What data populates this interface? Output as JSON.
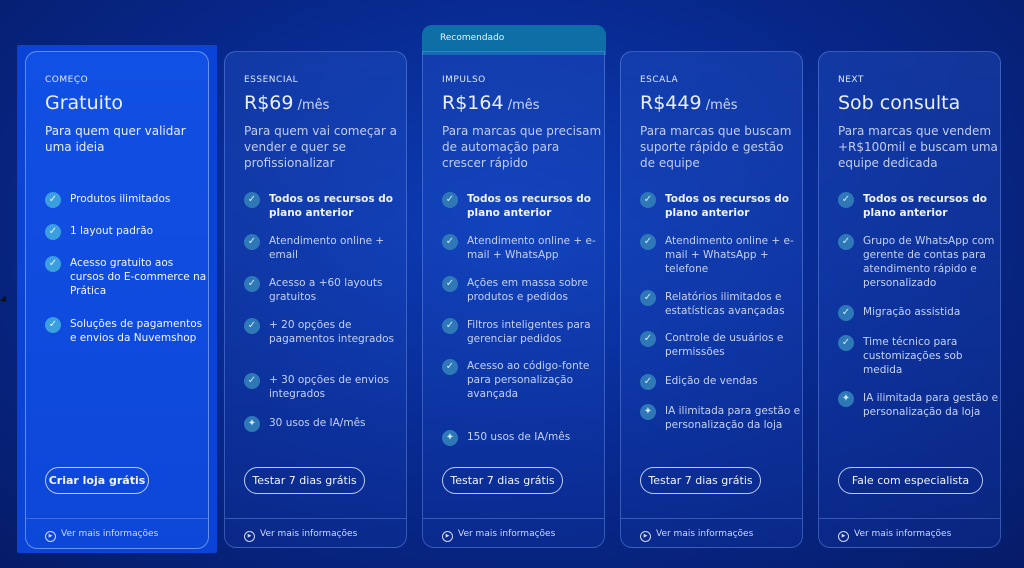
{
  "recommended_label": "Recomendado",
  "plans": [
    {
      "tier": "COMEÇO",
      "price": "Gratuito",
      "period": "",
      "description": "Para quem quer validar uma ideia",
      "features": [
        {
          "text": "Produtos ilimitados",
          "icon": "check-icon"
        },
        {
          "text": "1 layout padrão",
          "icon": "check-icon"
        },
        {
          "text": "Acesso gratuito aos cursos do E-commerce na Prática",
          "icon": "check-icon"
        },
        {
          "text": "Soluções de pagamentos e envios da Nuvemshop",
          "icon": "check-icon"
        }
      ],
      "cta": "Criar loja grátis",
      "more": "Ver mais informações"
    },
    {
      "tier": "ESSENCIAL",
      "price": "R$69",
      "period": " /mês",
      "description": "Para quem vai começar a vender e quer se profissionalizar",
      "features": [
        {
          "text": "Todos os recursos do plano anterior",
          "icon": "check-icon"
        },
        {
          "text": "Atendimento online + email",
          "icon": "check-icon"
        },
        {
          "text": "Acesso a +60 layouts gratuitos",
          "icon": "check-icon"
        },
        {
          "text": "+ 20 opções de pagamentos integrados",
          "icon": "check-icon"
        },
        {
          "text": "+ 30 opções de envios integrados",
          "icon": "check-icon"
        },
        {
          "text": "30 usos de IA/mês",
          "icon": "sparkle-icon"
        }
      ],
      "cta": "Testar 7 dias grátis",
      "more": "Ver mais informações"
    },
    {
      "tier": "IMPULSO",
      "price": "R$164",
      "period": " /mês",
      "description": "Para marcas que precisam de automação para crescer rápido",
      "features": [
        {
          "text": "Todos os recursos do plano anterior",
          "icon": "check-icon"
        },
        {
          "text": "Atendimento online + e-mail + WhatsApp",
          "icon": "check-icon"
        },
        {
          "text": "Ações em massa sobre produtos e pedidos",
          "icon": "check-icon"
        },
        {
          "text": "Filtros inteligentes para gerenciar pedidos",
          "icon": "check-icon"
        },
        {
          "text": "Acesso ao código-fonte para personalização avançada",
          "icon": "check-icon"
        },
        {
          "text": "150 usos de IA/mês",
          "icon": "sparkle-icon"
        }
      ],
      "cta": "Testar 7 dias grátis",
      "more": "Ver mais informações"
    },
    {
      "tier": "ESCALA",
      "price": "R$449",
      "period": " /mês",
      "description": "Para marcas que buscam suporte rápido e gestão de equipe",
      "features": [
        {
          "text": "Todos os recursos do plano anterior",
          "icon": "check-icon"
        },
        {
          "text": "Atendimento online + e-mail + WhatsApp + telefone",
          "icon": "check-icon"
        },
        {
          "text": "Relatórios ilimitados e estatísticas avançadas",
          "icon": "check-icon"
        },
        {
          "text": "Controle de usuários e permissões",
          "icon": "check-icon"
        },
        {
          "text": "Edição de vendas",
          "icon": "check-icon"
        },
        {
          "text": "IA ilimitada para gestão e personalização da loja",
          "icon": "sparkle-icon"
        }
      ],
      "cta": "Testar 7 dias grátis",
      "more": "Ver mais informações"
    },
    {
      "tier": "NEXT",
      "price": "Sob consulta",
      "period": "",
      "description": "Para marcas que vendem +R$100mil e buscam uma equipe dedicada",
      "features": [
        {
          "text": "Todos os recursos do plano anterior",
          "icon": "check-icon"
        },
        {
          "text": "Grupo de WhatsApp com gerente de contas para atendimento rápido e personalizado",
          "icon": "check-icon"
        },
        {
          "text": "Migração assistida",
          "icon": "check-icon"
        },
        {
          "text": "Time técnico para customizações sob medida",
          "icon": "check-icon"
        },
        {
          "text": "IA ilimitada para gestão e personalização da loja",
          "icon": "sparkle-icon"
        }
      ],
      "cta": "Fale com especialista",
      "more": "Ver mais informações"
    }
  ]
}
